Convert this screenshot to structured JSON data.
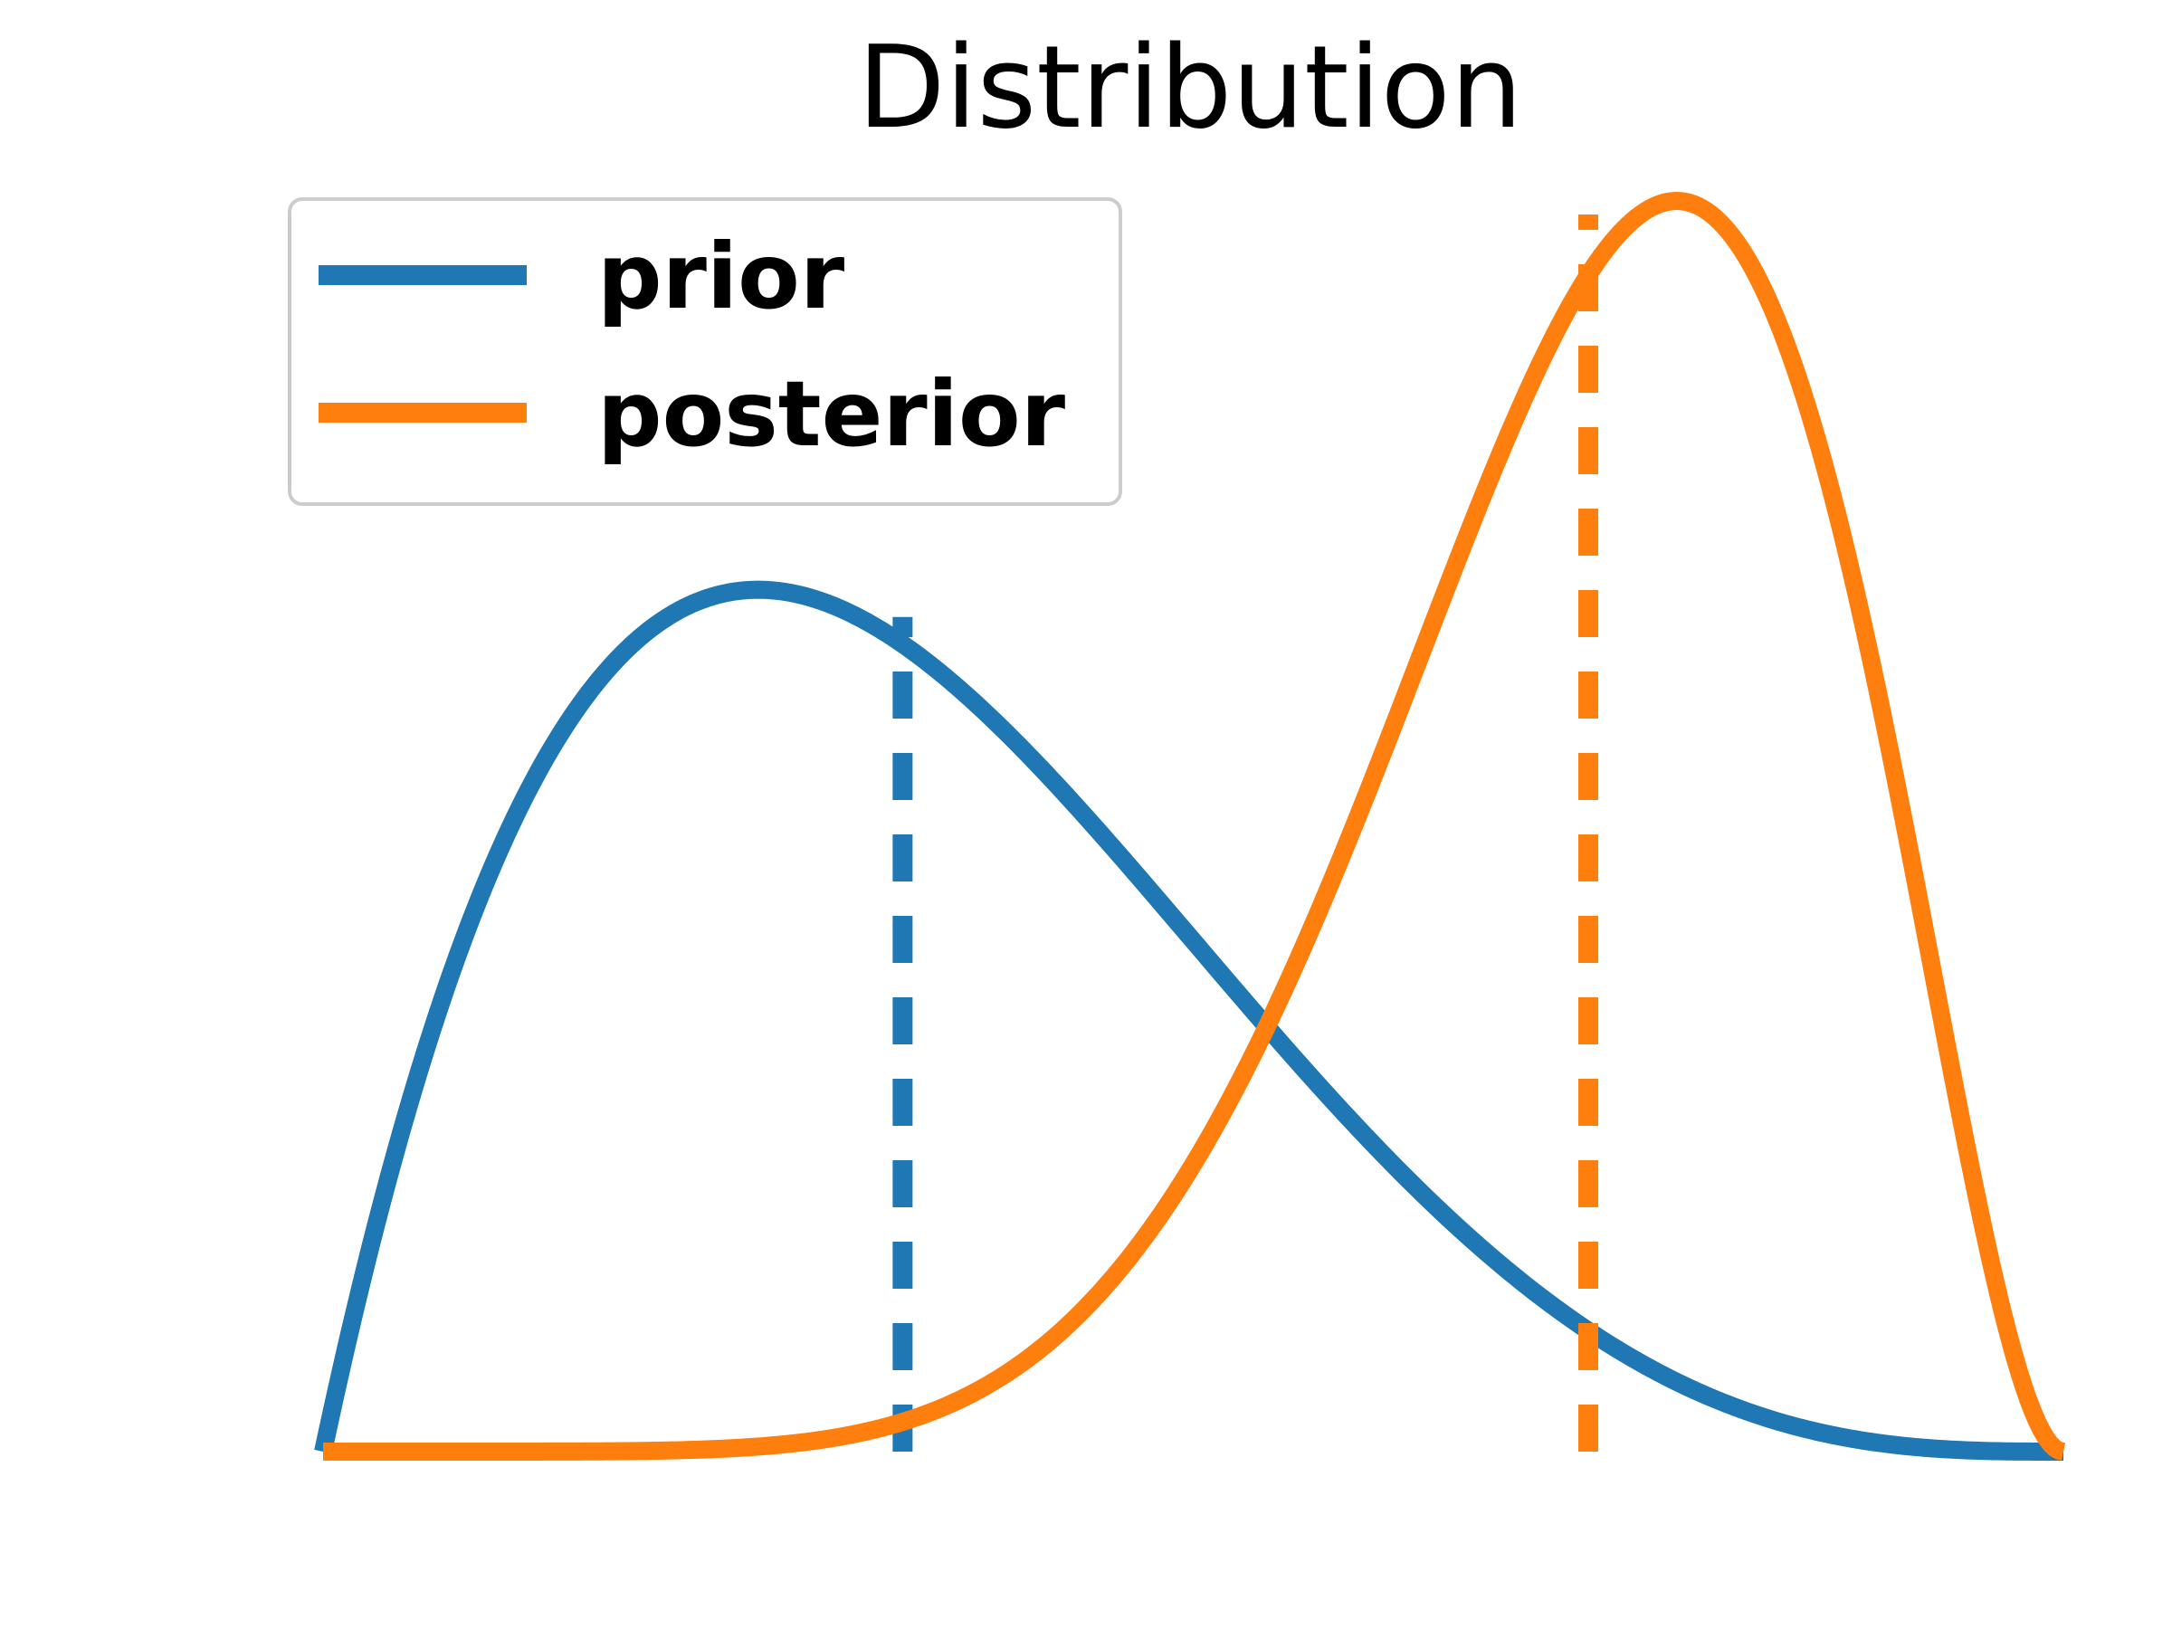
{
  "chart_data": {
    "type": "line",
    "title": "Distribution",
    "xlabel": "",
    "ylabel": "",
    "axes_visible": false,
    "grid": false,
    "legend_position": "upper-left",
    "xlim": [
      0,
      1
    ],
    "ylim": [
      0,
      3.05
    ],
    "series": [
      {
        "name": "prior",
        "color": "#1f77b4",
        "distribution": "beta",
        "alpha": 2,
        "beta": 4,
        "mean": 0.333,
        "mean_line_style": "dashed"
      },
      {
        "name": "posterior",
        "color": "#ff7f0e",
        "distribution": "beta",
        "alpha": 8,
        "beta": 3,
        "mean": 0.727,
        "mean_line_style": "dashed"
      }
    ]
  }
}
